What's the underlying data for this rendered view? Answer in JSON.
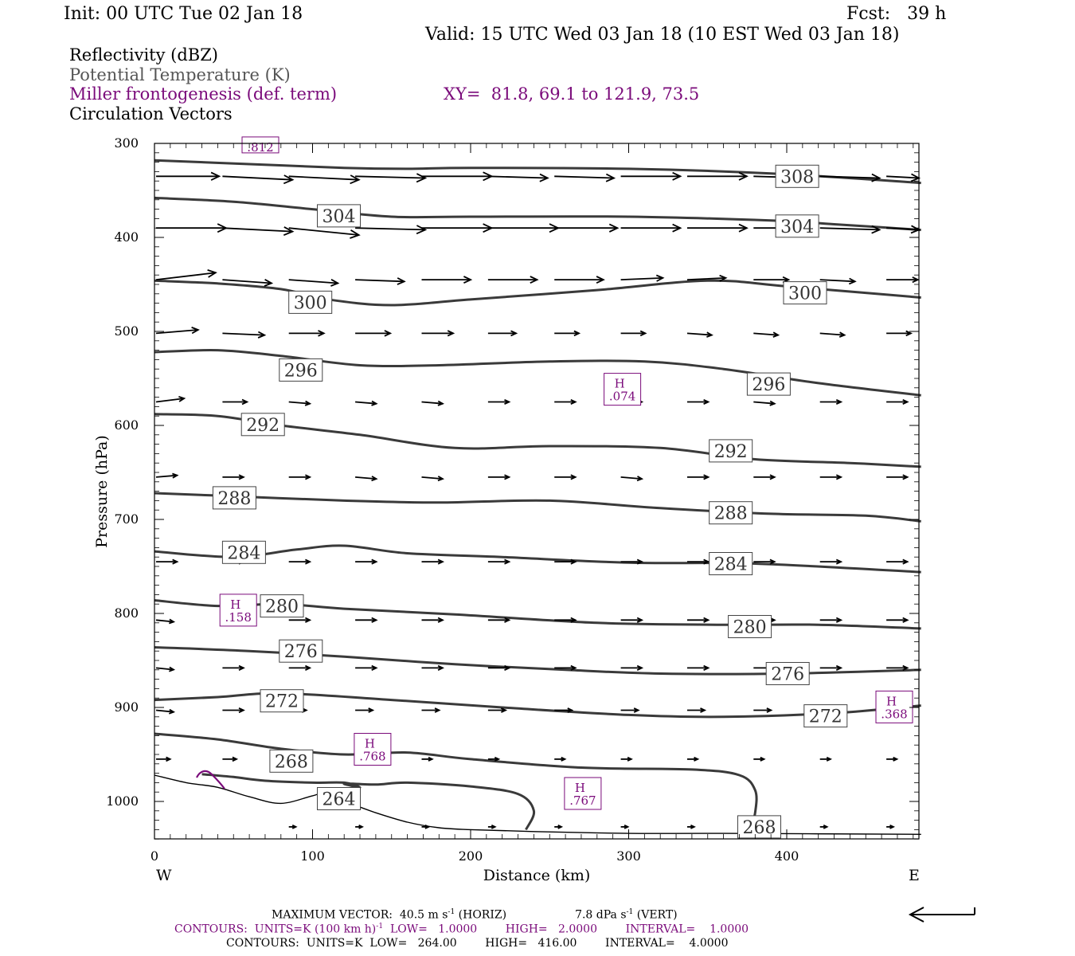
{
  "header": {
    "init": "Init: 00 UTC Tue 02 Jan 18",
    "fcst": "Fcst:   39 h",
    "valid": "Valid: 15 UTC Wed 03 Jan 18 (10 EST Wed 03 Jan 18)"
  },
  "legend_lines": {
    "reflectivity": "Reflectivity (dBZ)",
    "theta": "Potential Temperature (K)",
    "miller": "Miller frontogenesis (def. term)",
    "xy": "XY=  81.8, 69.1 to 121.9, 73.5",
    "circulation": "Circulation Vectors"
  },
  "footer": {
    "max_vector_prefix": "MAXIMUM VECTOR:  40.5 m s",
    "max_vector_horiz": " (HORIZ)",
    "max_vector_vert": "7.8 dPa s",
    "max_vector_vert_suffix": " (VERT)",
    "exp_minus1": "-1",
    "contours_frontogenesis": "CONTOURS:  UNITS=K (100 km h)",
    "contours_frontogenesis_rest": "  LOW=   1.0000        HIGH=   2.0000        INTERVAL=    1.0000",
    "contours_theta": "CONTOURS:  UNITS=K  LOW=   264.00        HIGH=   416.00        INTERVAL=    4.0000"
  },
  "colors": {
    "theta_contour": "#3a3a3a",
    "frontogenesis": "#7a0a7a",
    "vector": "#000000",
    "terrain": "#000000"
  },
  "chart_data": {
    "type": "cross-section",
    "xlabel": "Distance (km)",
    "ylabel": "Pressure (hPa)",
    "xlim": [
      0,
      485
    ],
    "ylim_pressure": [
      300,
      1040
    ],
    "x_ticks": [
      0,
      100,
      200,
      300,
      400
    ],
    "x_ticks_labels": [
      "0",
      "100",
      "200",
      "300",
      "400"
    ],
    "y_ticks": [
      300,
      400,
      500,
      600,
      700,
      800,
      900,
      1000
    ],
    "y_ticks_labels": [
      "300",
      "400",
      "500",
      "600",
      "700",
      "800",
      "900",
      "1000"
    ],
    "x_end_labels": {
      "west": "W",
      "east": "E"
    },
    "theta_contours": [
      {
        "level": "308",
        "points": [
          [
            0,
            318
          ],
          [
            60,
            322
          ],
          [
            120,
            326
          ],
          [
            160,
            327
          ],
          [
            200,
            326
          ],
          [
            300,
            327
          ],
          [
            390,
            332
          ],
          [
            485,
            342
          ]
        ]
      },
      {
        "level": "304",
        "points": [
          [
            0,
            358
          ],
          [
            50,
            362
          ],
          [
            100,
            370
          ],
          [
            150,
            378
          ],
          [
            200,
            378
          ],
          [
            300,
            378
          ],
          [
            390,
            382
          ],
          [
            430,
            386
          ],
          [
            485,
            392
          ]
        ]
      },
      {
        "level": "300",
        "points": [
          [
            0,
            446
          ],
          [
            40,
            449
          ],
          [
            80,
            455
          ],
          [
            110,
            466
          ],
          [
            150,
            472
          ],
          [
            200,
            466
          ],
          [
            280,
            456
          ],
          [
            350,
            446
          ],
          [
            400,
            452
          ],
          [
            485,
            464
          ]
        ]
      },
      {
        "level": "296",
        "points": [
          [
            0,
            522
          ],
          [
            40,
            520
          ],
          [
            80,
            526
          ],
          [
            130,
            536
          ],
          [
            180,
            536
          ],
          [
            250,
            532
          ],
          [
            310,
            532
          ],
          [
            360,
            540
          ],
          [
            420,
            555
          ],
          [
            485,
            568
          ]
        ]
      },
      {
        "level": "292",
        "points": [
          [
            0,
            588
          ],
          [
            40,
            590
          ],
          [
            80,
            600
          ],
          [
            130,
            610
          ],
          [
            190,
            624
          ],
          [
            250,
            622
          ],
          [
            320,
            624
          ],
          [
            380,
            636
          ],
          [
            440,
            640
          ],
          [
            485,
            644
          ]
        ]
      },
      {
        "level": "288",
        "points": [
          [
            0,
            672
          ],
          [
            60,
            676
          ],
          [
            120,
            680
          ],
          [
            180,
            682
          ],
          [
            250,
            680
          ],
          [
            320,
            688
          ],
          [
            390,
            694
          ],
          [
            450,
            696
          ],
          [
            485,
            702
          ]
        ]
      },
      {
        "level": "284",
        "points": [
          [
            0,
            734
          ],
          [
            50,
            740
          ],
          [
            90,
            732
          ],
          [
            120,
            728
          ],
          [
            160,
            736
          ],
          [
            220,
            740
          ],
          [
            300,
            746
          ],
          [
            380,
            747
          ],
          [
            485,
            756
          ]
        ]
      },
      {
        "level": "280",
        "points": [
          [
            0,
            786
          ],
          [
            40,
            792
          ],
          [
            80,
            790
          ],
          [
            120,
            795
          ],
          [
            190,
            801
          ],
          [
            280,
            810
          ],
          [
            360,
            812
          ],
          [
            420,
            812
          ],
          [
            485,
            816
          ]
        ]
      },
      {
        "level": "276",
        "points": [
          [
            0,
            836
          ],
          [
            60,
            840
          ],
          [
            120,
            846
          ],
          [
            190,
            854
          ],
          [
            260,
            860
          ],
          [
            320,
            864
          ],
          [
            400,
            864
          ],
          [
            485,
            860
          ]
        ]
      },
      {
        "level": "272",
        "points": [
          [
            0,
            892
          ],
          [
            40,
            889
          ],
          [
            80,
            885
          ],
          [
            150,
            892
          ],
          [
            220,
            900
          ],
          [
            300,
            908
          ],
          [
            360,
            910
          ],
          [
            430,
            906
          ],
          [
            485,
            898
          ]
        ]
      },
      {
        "level": "268",
        "points": [
          [
            0,
            928
          ],
          [
            40,
            934
          ],
          [
            80,
            944
          ],
          [
            120,
            950
          ],
          [
            160,
            948
          ],
          [
            200,
            955
          ],
          [
            270,
            964
          ],
          [
            340,
            966
          ],
          [
            370,
            972
          ],
          [
            380,
            988
          ],
          [
            380,
            1012
          ],
          [
            376,
            1036
          ]
        ]
      },
      {
        "level": "264",
        "points": [
          [
            30,
            971
          ],
          [
            50,
            974
          ],
          [
            70,
            978
          ],
          [
            100,
            980
          ],
          [
            120,
            980
          ],
          [
            130,
            985
          ],
          [
            120,
            981
          ],
          [
            140,
            982
          ],
          [
            160,
            980
          ],
          [
            200,
            984
          ],
          [
            230,
            992
          ],
          [
            240,
            1010
          ],
          [
            235,
            1030
          ]
        ]
      }
    ],
    "theta_labels": [
      {
        "text": "308",
        "x": 393,
        "p": 335
      },
      {
        "text": "304",
        "x": 103,
        "p": 377
      },
      {
        "text": "304",
        "x": 393,
        "p": 388
      },
      {
        "text": "300",
        "x": 85,
        "p": 469
      },
      {
        "text": "300",
        "x": 398,
        "p": 459
      },
      {
        "text": "296",
        "x": 79,
        "p": 541
      },
      {
        "text": "296",
        "x": 375,
        "p": 556
      },
      {
        "text": "292",
        "x": 55,
        "p": 599
      },
      {
        "text": "292",
        "x": 351,
        "p": 627
      },
      {
        "text": "288",
        "x": 37,
        "p": 677
      },
      {
        "text": "288",
        "x": 351,
        "p": 693
      },
      {
        "text": "284",
        "x": 43,
        "p": 735
      },
      {
        "text": "284",
        "x": 351,
        "p": 747
      },
      {
        "text": "280",
        "x": 67,
        "p": 792
      },
      {
        "text": "280",
        "x": 363,
        "p": 814
      },
      {
        "text": "276",
        "x": 79,
        "p": 840
      },
      {
        "text": "276",
        "x": 387,
        "p": 864
      },
      {
        "text": "272",
        "x": 67,
        "p": 893
      },
      {
        "text": "272",
        "x": 411,
        "p": 909
      },
      {
        "text": "268",
        "x": 73,
        "p": 957
      },
      {
        "text": "264",
        "x": 103,
        "p": 997
      },
      {
        "text": "268",
        "x": 369,
        "p": 1027
      }
    ],
    "frontogenesis_labels": [
      {
        "text": ".812",
        "h": false,
        "x": 67,
        "p": 305
      },
      {
        "text": ".074",
        "h": true,
        "x": 296,
        "p": 570
      },
      {
        "text": ".158",
        "h": true,
        "x": 53,
        "p": 805
      },
      {
        "text": ".768",
        "h": true,
        "x": 138,
        "p": 953
      },
      {
        "text": ".767",
        "h": true,
        "x": 271,
        "p": 1000
      },
      {
        "text": ".368",
        "h": true,
        "x": 468,
        "p": 908
      }
    ],
    "vector_x": [
      0,
      42,
      84,
      126,
      168,
      210,
      252,
      294,
      336,
      378,
      420,
      462
    ],
    "vector_levels": [
      {
        "p": 335,
        "u": [
          36,
          40,
          40,
          40,
          40,
          34,
          34,
          34,
          34,
          34,
          34,
          34
        ],
        "v": [
          0,
          2,
          2,
          1,
          0,
          1,
          1,
          0,
          0,
          1,
          1,
          1
        ]
      },
      {
        "p": 390,
        "u": [
          40,
          40,
          40,
          40,
          40,
          40,
          36,
          34,
          34,
          34,
          34,
          34
        ],
        "v": [
          0,
          2,
          4,
          1,
          0,
          0,
          0,
          0,
          0,
          0,
          1,
          1
        ]
      },
      {
        "p": 445,
        "u": [
          34,
          28,
          28,
          28,
          28,
          28,
          28,
          24,
          22,
          20,
          20,
          18
        ],
        "v": [
          -4,
          2,
          2,
          1,
          0,
          0,
          0,
          -1,
          -1,
          0,
          1,
          0
        ]
      },
      {
        "p": 502,
        "u": [
          24,
          24,
          20,
          20,
          18,
          16,
          14,
          14,
          14,
          14,
          14,
          14
        ],
        "v": [
          -2,
          1,
          0,
          0,
          0,
          0,
          0,
          0,
          1,
          1,
          1,
          0
        ]
      },
      {
        "p": 575,
        "u": [
          16,
          14,
          12,
          12,
          12,
          12,
          12,
          12,
          12,
          12,
          12,
          12
        ],
        "v": [
          -2,
          0,
          1,
          1,
          1,
          0,
          0,
          0,
          0,
          1,
          0,
          0
        ]
      },
      {
        "p": 655,
        "u": [
          12,
          12,
          12,
          12,
          12,
          12,
          12,
          12,
          12,
          12,
          12,
          12
        ],
        "v": [
          -1,
          0,
          0,
          1,
          1,
          0,
          0,
          1,
          0,
          0,
          0,
          0
        ]
      },
      {
        "p": 745,
        "u": [
          12,
          12,
          12,
          12,
          12,
          12,
          12,
          12,
          12,
          12,
          12,
          12
        ],
        "v": [
          0,
          0,
          0,
          0,
          0,
          0,
          0,
          0,
          0,
          0,
          0,
          0
        ]
      },
      {
        "p": 807,
        "u": [
          10,
          12,
          12,
          12,
          12,
          12,
          12,
          12,
          12,
          12,
          12,
          12
        ],
        "v": [
          1,
          0,
          0,
          0,
          0,
          0,
          0,
          0,
          0,
          0,
          0,
          0
        ]
      },
      {
        "p": 858,
        "u": [
          10,
          12,
          12,
          12,
          12,
          12,
          12,
          12,
          12,
          12,
          12,
          12
        ],
        "v": [
          1,
          0,
          0,
          0,
          0,
          0,
          0,
          0,
          0,
          0,
          0,
          0
        ]
      },
      {
        "p": 903,
        "u": [
          10,
          12,
          10,
          10,
          10,
          10,
          10,
          10,
          10,
          10,
          10,
          10
        ],
        "v": [
          1,
          0,
          0,
          0,
          0,
          0,
          0,
          0,
          0,
          0,
          0,
          0
        ]
      },
      {
        "p": 955,
        "u": [
          8,
          8,
          8,
          8,
          6,
          6,
          6,
          6,
          6,
          6,
          6,
          6
        ],
        "v": [
          0,
          0,
          0,
          0,
          0,
          0,
          0,
          0,
          0,
          0,
          0,
          0
        ]
      },
      {
        "p": 1027,
        "u": [
          0,
          0,
          4,
          4,
          4,
          4,
          4,
          4,
          4,
          4,
          4,
          4
        ],
        "v": [
          0,
          0,
          0,
          0,
          0,
          0,
          0,
          0,
          0,
          0,
          0,
          0
        ]
      }
    ],
    "terrain": [
      [
        0,
        972
      ],
      [
        20,
        980
      ],
      [
        40,
        985
      ],
      [
        60,
        995
      ],
      [
        80,
        1002
      ],
      [
        100,
        994
      ],
      [
        105,
        993
      ],
      [
        120,
        1000
      ],
      [
        140,
        1012
      ],
      [
        160,
        1022
      ],
      [
        180,
        1028
      ],
      [
        200,
        1030
      ],
      [
        240,
        1032
      ],
      [
        300,
        1034
      ],
      [
        360,
        1034
      ],
      [
        485,
        1035
      ]
    ],
    "grid": false
  }
}
